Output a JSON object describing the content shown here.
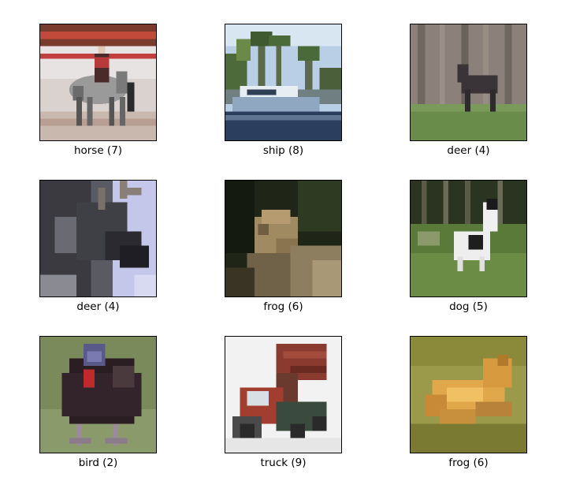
{
  "figure": {
    "images": [
      {
        "label": "horse (7)",
        "depicts": "horse"
      },
      {
        "label": "ship (8)",
        "depicts": "ship"
      },
      {
        "label": "deer (4)",
        "depicts": "deer"
      },
      {
        "label": "deer (4)",
        "depicts": "deer"
      },
      {
        "label": "frog (6)",
        "depicts": "frog"
      },
      {
        "label": "dog (5)",
        "depicts": "dog"
      },
      {
        "label": "bird (2)",
        "depicts": "bird"
      },
      {
        "label": "truck (9)",
        "depicts": "truck"
      },
      {
        "label": "frog (6)",
        "depicts": "frog"
      }
    ]
  }
}
